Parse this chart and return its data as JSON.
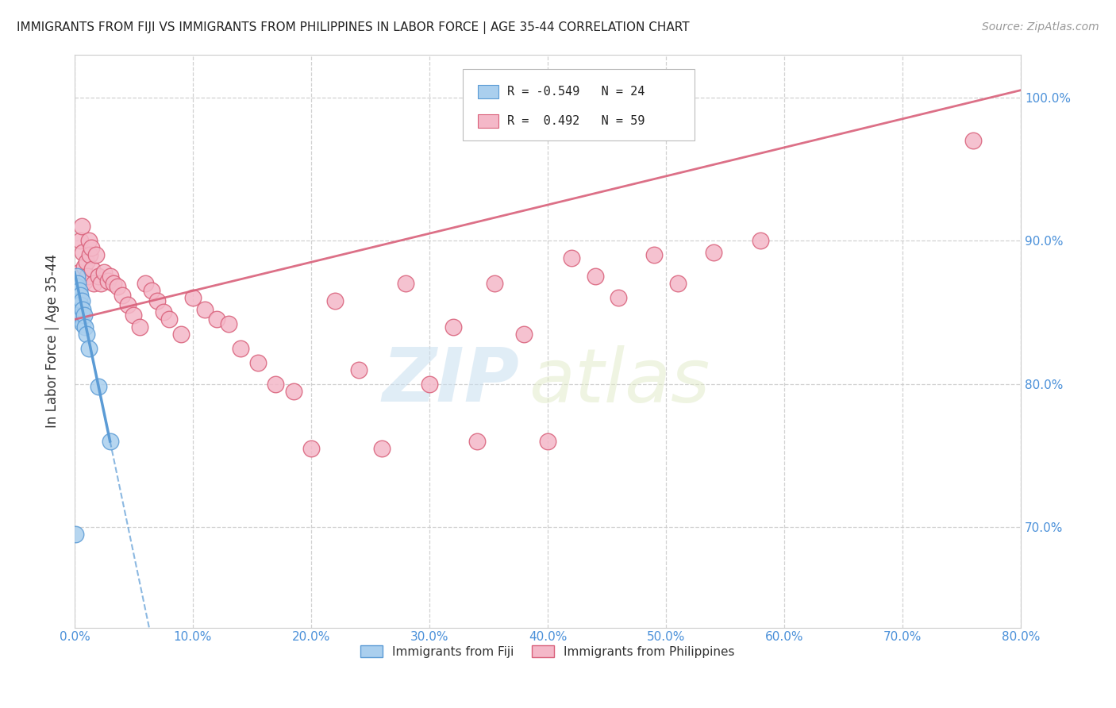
{
  "title": "IMMIGRANTS FROM FIJI VS IMMIGRANTS FROM PHILIPPINES IN LABOR FORCE | AGE 35-44 CORRELATION CHART",
  "source": "Source: ZipAtlas.com",
  "ylabel": "In Labor Force | Age 35-44",
  "xmin": 0.0,
  "xmax": 0.8,
  "ymin": 0.63,
  "ymax": 1.03,
  "ytick_vals": [
    0.7,
    0.8,
    0.9,
    1.0
  ],
  "xtick_vals": [
    0.0,
    0.1,
    0.2,
    0.3,
    0.4,
    0.5,
    0.6,
    0.7,
    0.8
  ],
  "fiji_color": "#aacfee",
  "fiji_edge_color": "#5b9bd5",
  "philippines_color": "#f4b8c8",
  "philippines_edge_color": "#d9607a",
  "fiji_R": -0.549,
  "fiji_N": 24,
  "philippines_R": 0.492,
  "philippines_N": 59,
  "fiji_x": [
    0.001,
    0.001,
    0.002,
    0.002,
    0.002,
    0.003,
    0.003,
    0.003,
    0.004,
    0.004,
    0.004,
    0.005,
    0.005,
    0.005,
    0.006,
    0.006,
    0.007,
    0.007,
    0.008,
    0.009,
    0.01,
    0.012,
    0.02,
    0.03
  ],
  "fiji_y": [
    0.695,
    0.865,
    0.875,
    0.868,
    0.858,
    0.87,
    0.862,
    0.855,
    0.865,
    0.858,
    0.848,
    0.862,
    0.855,
    0.845,
    0.858,
    0.848,
    0.852,
    0.842,
    0.848,
    0.84,
    0.835,
    0.825,
    0.798,
    0.76
  ],
  "philippines_x": [
    0.002,
    0.004,
    0.005,
    0.006,
    0.007,
    0.008,
    0.009,
    0.01,
    0.011,
    0.012,
    0.013,
    0.014,
    0.015,
    0.016,
    0.018,
    0.02,
    0.022,
    0.025,
    0.028,
    0.03,
    0.033,
    0.036,
    0.04,
    0.045,
    0.05,
    0.055,
    0.06,
    0.065,
    0.07,
    0.075,
    0.08,
    0.09,
    0.1,
    0.11,
    0.12,
    0.13,
    0.14,
    0.155,
    0.17,
    0.185,
    0.2,
    0.22,
    0.24,
    0.26,
    0.28,
    0.3,
    0.32,
    0.34,
    0.355,
    0.38,
    0.4,
    0.42,
    0.44,
    0.46,
    0.49,
    0.51,
    0.54,
    0.58,
    0.76
  ],
  "philippines_y": [
    0.87,
    0.878,
    0.9,
    0.91,
    0.892,
    0.882,
    0.872,
    0.885,
    0.875,
    0.9,
    0.89,
    0.895,
    0.88,
    0.87,
    0.89,
    0.875,
    0.87,
    0.878,
    0.872,
    0.875,
    0.87,
    0.868,
    0.862,
    0.855,
    0.848,
    0.84,
    0.87,
    0.865,
    0.858,
    0.85,
    0.845,
    0.835,
    0.86,
    0.852,
    0.845,
    0.842,
    0.825,
    0.815,
    0.8,
    0.795,
    0.755,
    0.858,
    0.81,
    0.755,
    0.87,
    0.8,
    0.84,
    0.76,
    0.87,
    0.835,
    0.76,
    0.888,
    0.875,
    0.86,
    0.89,
    0.87,
    0.892,
    0.9,
    0.97
  ],
  "watermark_zip": "ZIP",
  "watermark_atlas": "atlas",
  "background_color": "#ffffff",
  "grid_color": "#cccccc",
  "tick_label_color": "#4a90d9",
  "axis_line_color": "#cccccc"
}
